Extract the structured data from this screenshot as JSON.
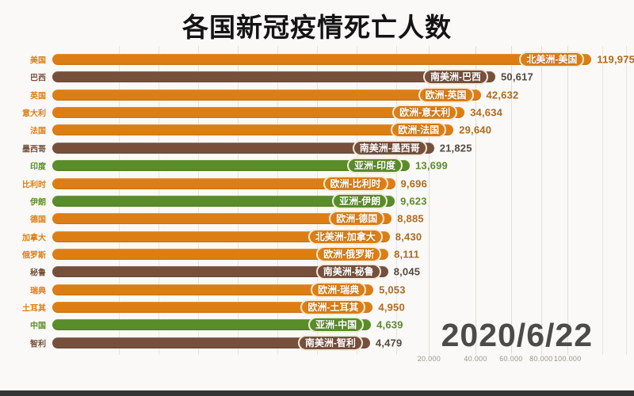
{
  "title": "各国新冠疫情死亡人数",
  "date_label": "2020/6/22",
  "continent_colors": {
    "北美洲": "#DD7E14",
    "欧洲": "#DD7E14",
    "南美洲": "#77503C",
    "亚洲": "#5A8D29"
  },
  "value_text_colors": {
    "北美洲": "#AE6A20",
    "欧洲": "#AE6A20",
    "南美洲": "#554940",
    "亚洲": "#5E8A2D"
  },
  "chart_data": {
    "type": "bar",
    "orientation": "horizontal",
    "title": "各国新冠疫情死亡人数",
    "date": "2020/6/22",
    "axis": {
      "scale": "sqrt",
      "range": [
        0,
        120000
      ],
      "grid": true,
      "tick_format": "dot-thousands"
    },
    "x_ticks": [
      "20.000",
      "40.000",
      "60.000",
      "80.000",
      "100.000"
    ],
    "x_tick_values": [
      20000,
      40000,
      60000,
      80000,
      100000
    ],
    "bars": [
      {
        "country": "美国",
        "continent": "北美洲",
        "label": "北美洲-美国",
        "value": 119975,
        "display_value": "119,975"
      },
      {
        "country": "巴西",
        "continent": "南美洲",
        "label": "南美洲-巴西",
        "value": 50617,
        "display_value": "50,617"
      },
      {
        "country": "英国",
        "continent": "欧洲",
        "label": "欧洲-英国",
        "value": 42632,
        "display_value": "42,632"
      },
      {
        "country": "意大利",
        "continent": "欧洲",
        "label": "欧洲-意大利",
        "value": 34634,
        "display_value": "34,634"
      },
      {
        "country": "法国",
        "continent": "欧洲",
        "label": "欧洲-法国",
        "value": 29640,
        "display_value": "29,640"
      },
      {
        "country": "墨西哥",
        "continent": "南美洲",
        "label": "南美洲-墨西哥",
        "value": 21825,
        "display_value": "21,825"
      },
      {
        "country": "印度",
        "continent": "亚洲",
        "label": "亚洲-印度",
        "value": 13699,
        "display_value": "13,699"
      },
      {
        "country": "比利时",
        "continent": "欧洲",
        "label": "欧洲-比利时",
        "value": 9696,
        "display_value": "9,696"
      },
      {
        "country": "伊朗",
        "continent": "亚洲",
        "label": "亚洲-伊朗",
        "value": 9623,
        "display_value": "9,623"
      },
      {
        "country": "德国",
        "continent": "欧洲",
        "label": "欧洲-德国",
        "value": 8885,
        "display_value": "8,885"
      },
      {
        "country": "加拿大",
        "continent": "北美洲",
        "label": "北美洲-加拿大",
        "value": 8430,
        "display_value": "8,430"
      },
      {
        "country": "俄罗斯",
        "continent": "欧洲",
        "label": "欧洲-俄罗斯",
        "value": 8111,
        "display_value": "8,111"
      },
      {
        "country": "秘鲁",
        "continent": "南美洲",
        "label": "南美洲-秘鲁",
        "value": 8045,
        "display_value": "8,045"
      },
      {
        "country": "瑞典",
        "continent": "欧洲",
        "label": "欧洲-瑞典",
        "value": 5053,
        "display_value": "5,053"
      },
      {
        "country": "土耳其",
        "continent": "欧洲",
        "label": "欧洲-土耳其",
        "value": 4950,
        "display_value": "4,950"
      },
      {
        "country": "中国",
        "continent": "亚洲",
        "label": "亚洲-中国",
        "value": 4639,
        "display_value": "4,639"
      },
      {
        "country": "智利",
        "continent": "南美洲",
        "label": "南美洲-智利",
        "value": 4479,
        "display_value": "4,479"
      }
    ]
  }
}
